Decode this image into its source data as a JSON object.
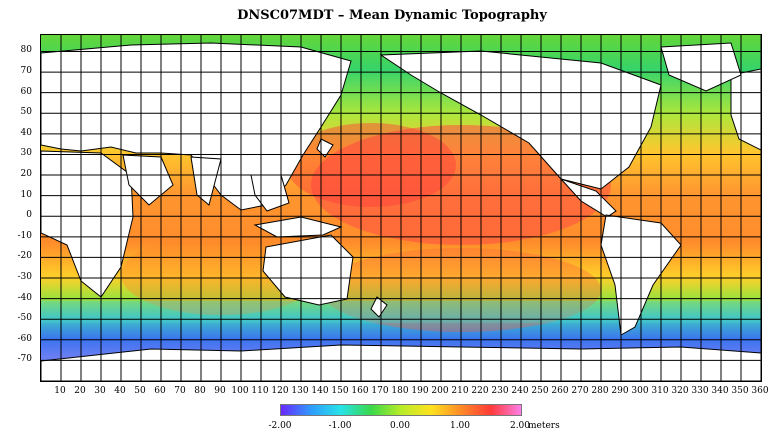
{
  "title": "DNSC07MDT – Mean Dynamic Topography",
  "map": {
    "projection": "equirectangular",
    "lon_range": [
      0,
      360
    ],
    "lat_range": [
      -80,
      88
    ],
    "y_tick_labels": [
      "80",
      "70",
      "60",
      "50",
      "40",
      "30",
      "20",
      "10",
      "0",
      "-10",
      "-20",
      "-30",
      "-40",
      "-50",
      "-60",
      "-70"
    ],
    "x_tick_labels": [
      "10",
      "20",
      "30",
      "40",
      "50",
      "60",
      "70",
      "80",
      "90",
      "100",
      "110",
      "120",
      "130",
      "140",
      "150",
      "160",
      "170",
      "180",
      "190",
      "200",
      "210",
      "220",
      "230",
      "240",
      "250",
      "260",
      "270",
      "280",
      "290",
      "300",
      "310",
      "320",
      "330",
      "340",
      "350",
      "360"
    ],
    "grid": true,
    "land_color": "#ffffff",
    "coastline_color": "#000000"
  },
  "colorbar": {
    "tick_labels": [
      "-2.00",
      "-1.00",
      "0.00",
      "1.00",
      "2.00"
    ],
    "units": "meters",
    "colors": [
      "#6a28ff",
      "#2f9bff",
      "#27e3e7",
      "#39d84a",
      "#b7ec28",
      "#ffe21f",
      "#ff8a26",
      "#ff3a3a",
      "#ff7fe8"
    ]
  }
}
